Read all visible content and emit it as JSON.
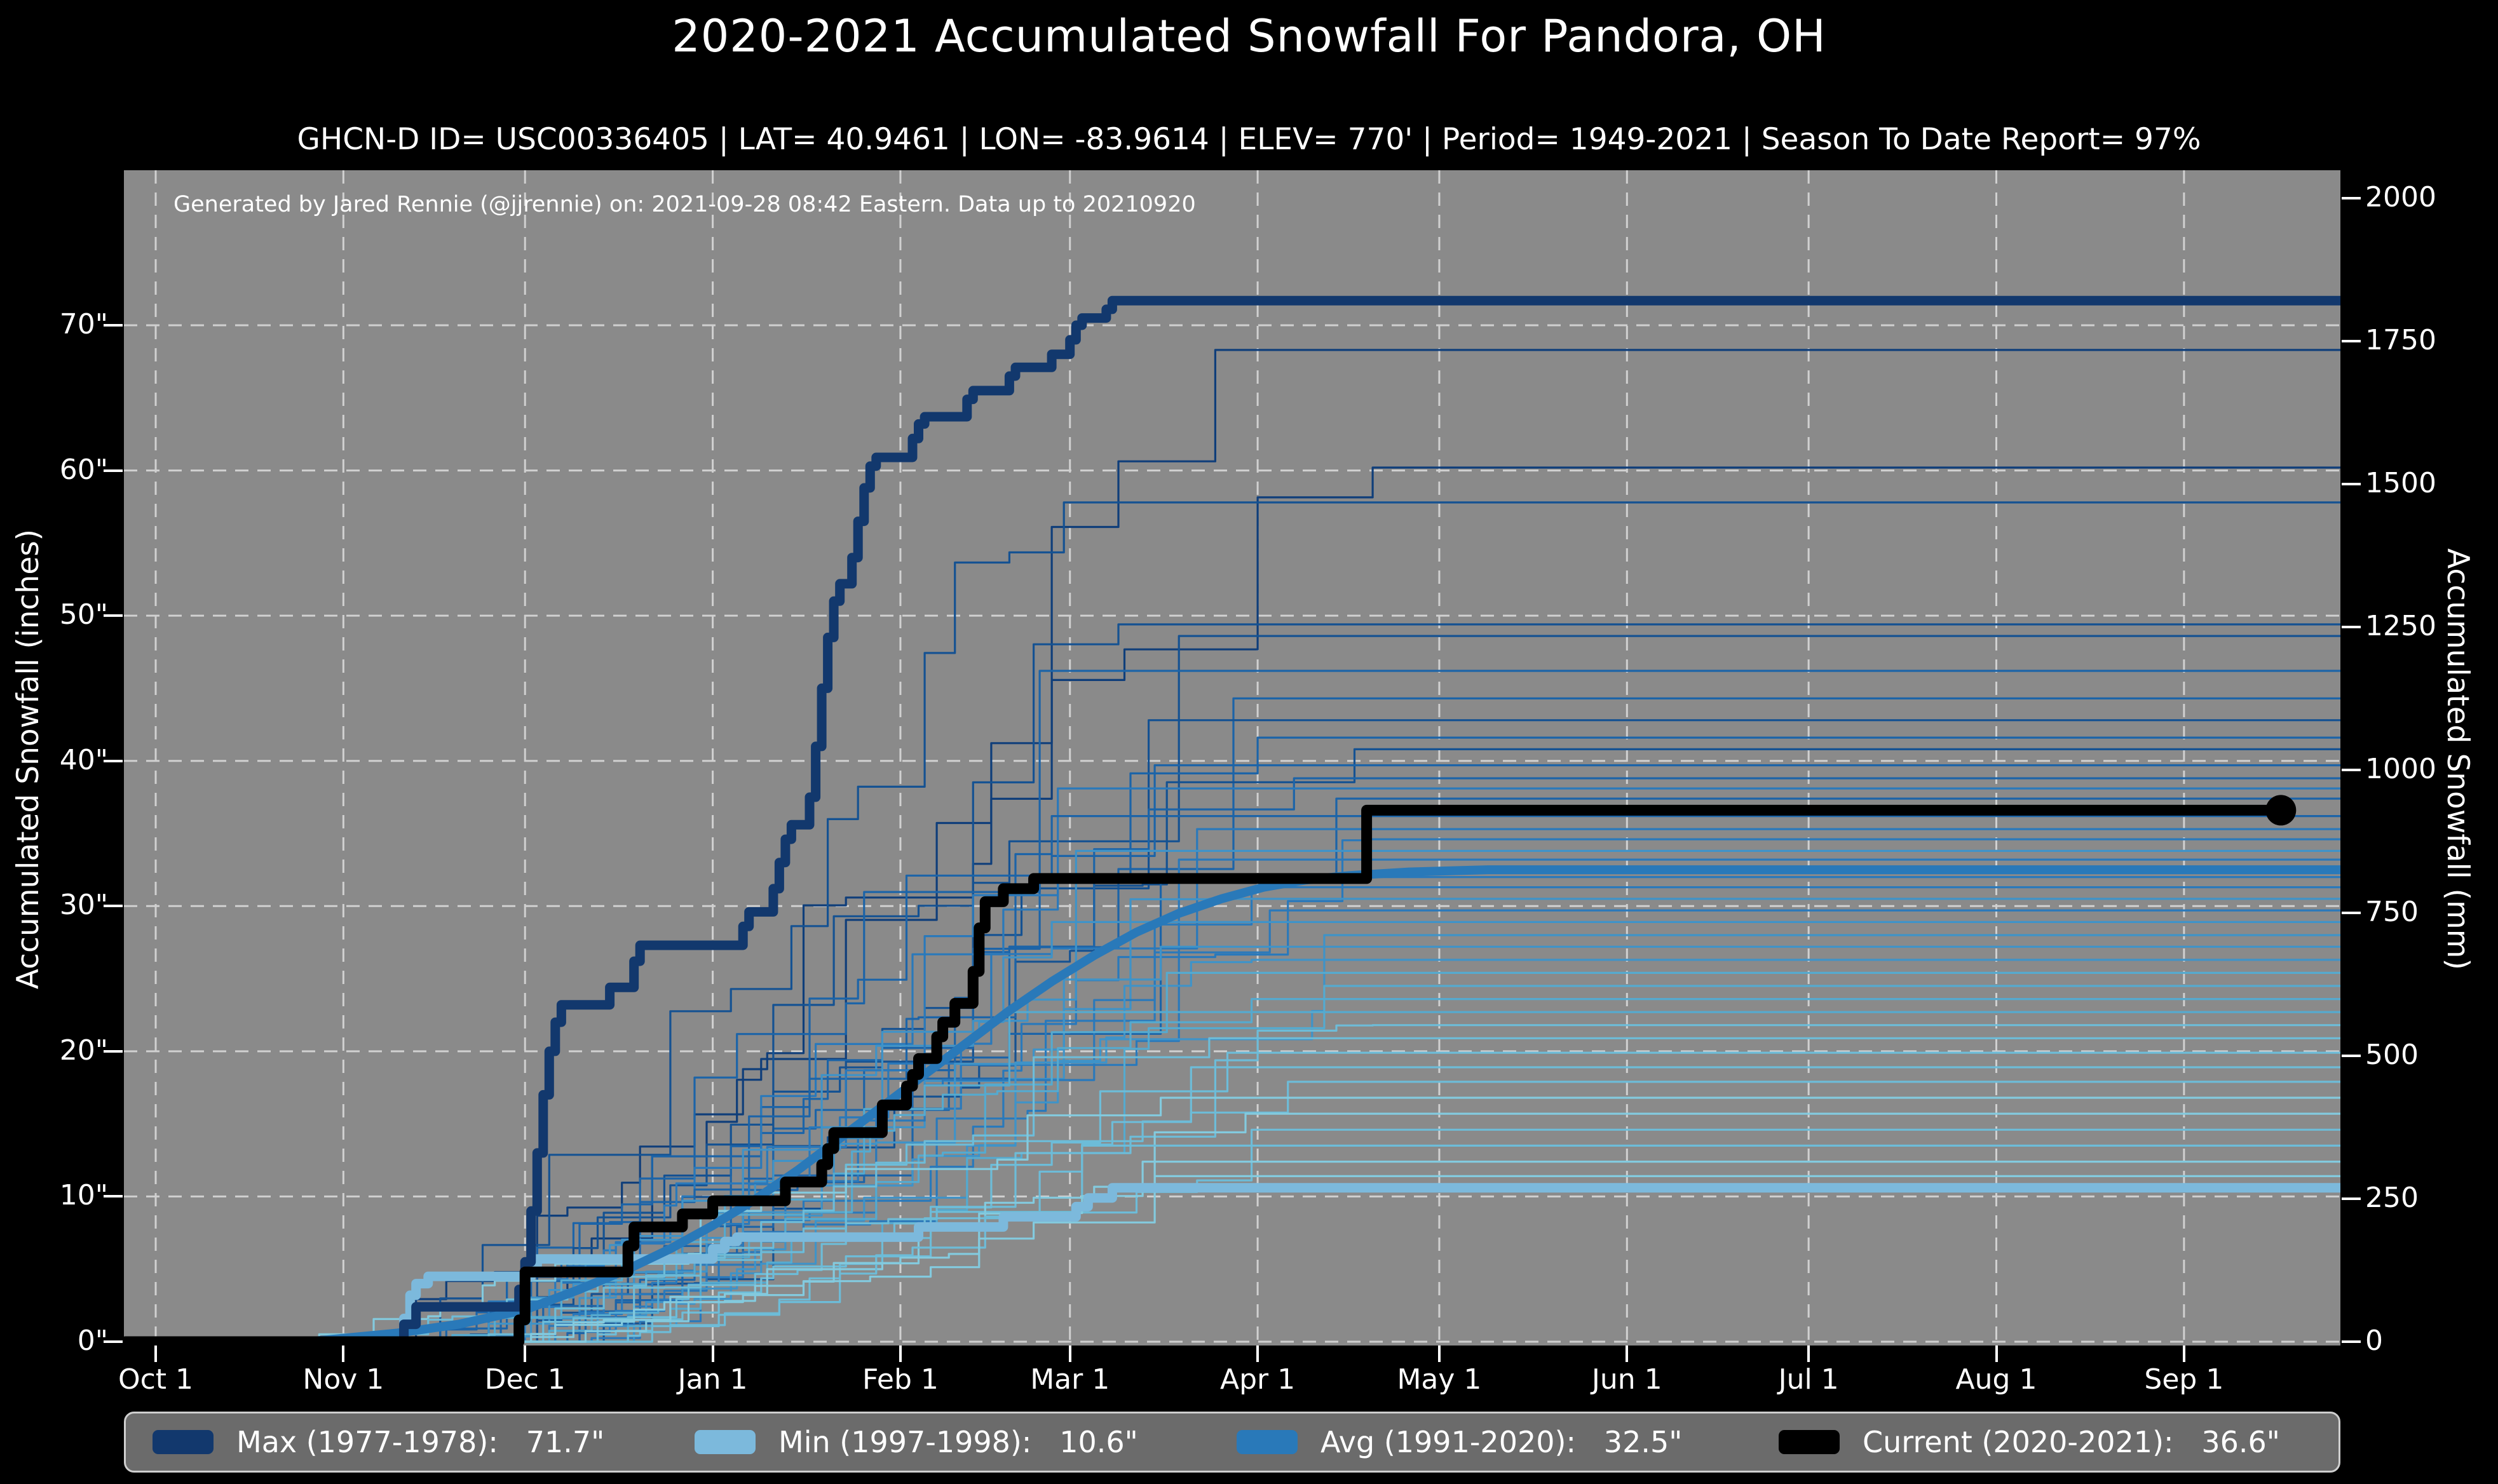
{
  "header": {
    "title": "2020-2021 Accumulated Snowfall For Pandora, OH",
    "subtitle": "GHCN-D ID= USC00336405 | LAT= 40.9461 | LON= -83.9614 | ELEV= 770' | Period= 1949-2021 | Season To Date Report= 97%"
  },
  "colors": {
    "page_bg": "#000000",
    "plot_bg": "#8a8a8a",
    "grid": "#e8e8e8",
    "text": "#ffffff",
    "max": "#12386d",
    "min": "#7cb9dc",
    "avg": "#2979b9",
    "current": "#000000",
    "thin_palette": [
      "#0f3e7a",
      "#155292",
      "#1c64a8",
      "#2a79bb",
      "#3f93c8",
      "#55aacf",
      "#6dbcd8",
      "#83cade"
    ]
  },
  "chart_data": {
    "type": "line",
    "title": "2020-2021 Accumulated Snowfall For Pandora, OH",
    "annotation": "Generated by Jared Rennie (@jjrennie) on: 2021-09-28 08:42 Eastern. Data up to 20210920",
    "xlabel": "",
    "ylabel_left": "Accumulated Snowfall (inches)",
    "ylabel_right": "Accumulated Snowfall (mm)",
    "grid": true,
    "legend_position": "bottom",
    "x_unit": "days since Oct 1",
    "x_ticks": [
      {
        "label": "Oct 1",
        "day": 0
      },
      {
        "label": "Nov 1",
        "day": 31
      },
      {
        "label": "Dec 1",
        "day": 61
      },
      {
        "label": "Jan 1",
        "day": 92
      },
      {
        "label": "Feb 1",
        "day": 123
      },
      {
        "label": "Mar 1",
        "day": 151
      },
      {
        "label": "Apr 1",
        "day": 182
      },
      {
        "label": "May 1",
        "day": 212
      },
      {
        "label": "Jun 1",
        "day": 243
      },
      {
        "label": "Jul 1",
        "day": 273
      },
      {
        "label": "Aug 1",
        "day": 304
      },
      {
        "label": "Sep 1",
        "day": 335
      }
    ],
    "y_left_ticks": [
      {
        "label": "0\"",
        "value": 0
      },
      {
        "label": "10\"",
        "value": 10
      },
      {
        "label": "20\"",
        "value": 20
      },
      {
        "label": "30\"",
        "value": 30
      },
      {
        "label": "40\"",
        "value": 40
      },
      {
        "label": "50\"",
        "value": 50
      },
      {
        "label": "60\"",
        "value": 60
      },
      {
        "label": "70\"",
        "value": 70
      }
    ],
    "y_right_ticks": [
      {
        "label": "0",
        "mm": 0
      },
      {
        "label": "250",
        "mm": 250
      },
      {
        "label": "500",
        "mm": 500
      },
      {
        "label": "750",
        "mm": 750
      },
      {
        "label": "1000",
        "mm": 1000
      },
      {
        "label": "1250",
        "mm": 1250
      },
      {
        "label": "1500",
        "mm": 1500
      },
      {
        "label": "1750",
        "mm": 1750
      },
      {
        "label": "2000",
        "mm": 2000
      }
    ],
    "ylim_inches": [
      0,
      80.7
    ],
    "mm_per_inch": 25.4,
    "series": [
      {
        "id": "max",
        "name": "Max (1977-1978)",
        "total_inches": 71.7,
        "style": "step",
        "width": 15,
        "points": [
          [
            -5,
            0
          ],
          [
            40,
            0
          ],
          [
            41,
            1.2
          ],
          [
            43,
            2.4
          ],
          [
            59,
            2.4
          ],
          [
            60,
            3.6
          ],
          [
            61,
            5.5
          ],
          [
            62,
            9
          ],
          [
            63,
            13
          ],
          [
            64,
            17
          ],
          [
            65,
            20
          ],
          [
            66,
            22
          ],
          [
            67,
            23.2
          ],
          [
            74,
            23.2
          ],
          [
            75,
            24.4
          ],
          [
            78,
            24.4
          ],
          [
            79,
            26.2
          ],
          [
            80,
            27.3
          ],
          [
            96,
            27.3
          ],
          [
            97,
            28.6
          ],
          [
            98,
            29.6
          ],
          [
            101,
            29.6
          ],
          [
            102,
            31.2
          ],
          [
            103,
            33
          ],
          [
            104,
            34.6
          ],
          [
            105,
            35.6
          ],
          [
            107,
            35.6
          ],
          [
            108,
            37.5
          ],
          [
            109,
            41
          ],
          [
            110,
            45
          ],
          [
            111,
            48.5
          ],
          [
            112,
            51
          ],
          [
            113,
            52.2
          ],
          [
            114,
            52.2
          ],
          [
            115,
            54
          ],
          [
            116,
            56.5
          ],
          [
            117,
            58.8
          ],
          [
            118,
            60.3
          ],
          [
            119,
            60.9
          ],
          [
            124,
            60.9
          ],
          [
            125,
            62.2
          ],
          [
            126,
            63.2
          ],
          [
            127,
            63.7
          ],
          [
            133,
            63.7
          ],
          [
            134,
            64.9
          ],
          [
            135,
            65.5
          ],
          [
            140,
            65.5
          ],
          [
            141,
            66.5
          ],
          [
            142,
            67.1
          ],
          [
            147,
            67.1
          ],
          [
            148,
            68
          ],
          [
            150,
            68
          ],
          [
            151,
            69
          ],
          [
            152,
            70
          ],
          [
            153,
            70.5
          ],
          [
            156,
            70.5
          ],
          [
            157,
            71.1
          ],
          [
            158,
            71.7
          ],
          [
            364,
            71.7
          ]
        ]
      },
      {
        "id": "min",
        "name": "Min (1997-1998)",
        "total_inches": 10.6,
        "style": "step",
        "width": 15,
        "points": [
          [
            -5,
            0
          ],
          [
            40,
            0
          ],
          [
            41,
            1.6
          ],
          [
            42,
            3.2
          ],
          [
            43,
            4
          ],
          [
            45,
            4.5
          ],
          [
            61,
            4.5
          ],
          [
            62,
            5.2
          ],
          [
            63,
            5.7
          ],
          [
            91,
            5.7
          ],
          [
            92,
            6.4
          ],
          [
            94,
            6.9
          ],
          [
            96,
            7.2
          ],
          [
            125,
            7.2
          ],
          [
            126,
            7.9
          ],
          [
            139,
            7.9
          ],
          [
            140,
            8.6
          ],
          [
            151,
            8.6
          ],
          [
            152,
            9.3
          ],
          [
            154,
            9.9
          ],
          [
            157,
            9.9
          ],
          [
            158,
            10.6
          ],
          [
            364,
            10.6
          ]
        ]
      },
      {
        "id": "avg",
        "name": "Avg (1991-2020)",
        "total_inches": 32.5,
        "style": "linear",
        "width": 14,
        "points": [
          [
            25,
            0
          ],
          [
            40,
            0.6
          ],
          [
            50,
            1.2
          ],
          [
            61,
            2.2
          ],
          [
            70,
            3.6
          ],
          [
            78,
            5
          ],
          [
            85,
            6.4
          ],
          [
            92,
            8
          ],
          [
            99,
            9.8
          ],
          [
            106,
            11.8
          ],
          [
            113,
            14
          ],
          [
            120,
            16.2
          ],
          [
            127,
            18.4
          ],
          [
            134,
            20.6
          ],
          [
            141,
            22.8
          ],
          [
            148,
            24.8
          ],
          [
            155,
            26.6
          ],
          [
            162,
            28.2
          ],
          [
            169,
            29.5
          ],
          [
            176,
            30.5
          ],
          [
            183,
            31.3
          ],
          [
            190,
            31.8
          ],
          [
            197,
            32.1
          ],
          [
            207,
            32.35
          ],
          [
            220,
            32.5
          ],
          [
            364,
            32.5
          ]
        ]
      },
      {
        "id": "current",
        "name": "Current (2020-2021)",
        "total_inches": 36.6,
        "style": "step",
        "width": 17,
        "endpoint_marker": {
          "day": 351,
          "value": 36.6,
          "radius": 24
        },
        "points": [
          [
            -5,
            0
          ],
          [
            59,
            0
          ],
          [
            60,
            1.5
          ],
          [
            61,
            4.8
          ],
          [
            77,
            4.8
          ],
          [
            78,
            6.6
          ],
          [
            79,
            7.9
          ],
          [
            86,
            7.9
          ],
          [
            87,
            8.8
          ],
          [
            91,
            8.8
          ],
          [
            92,
            9.7
          ],
          [
            103,
            9.7
          ],
          [
            104,
            11
          ],
          [
            109,
            11
          ],
          [
            110,
            12.2
          ],
          [
            111,
            13.3
          ],
          [
            112,
            14.4
          ],
          [
            119,
            14.4
          ],
          [
            120,
            16.3
          ],
          [
            123,
            16.3
          ],
          [
            124,
            17.6
          ],
          [
            125,
            18.4
          ],
          [
            126,
            19.5
          ],
          [
            128,
            19.5
          ],
          [
            129,
            21
          ],
          [
            130,
            22
          ],
          [
            131,
            22
          ],
          [
            132,
            23.3
          ],
          [
            134,
            23.3
          ],
          [
            135,
            25.5
          ],
          [
            136,
            28.5
          ],
          [
            137,
            30.3
          ],
          [
            139,
            30.3
          ],
          [
            140,
            31.2
          ],
          [
            144,
            31.2
          ],
          [
            145,
            31.9
          ],
          [
            199,
            31.9
          ],
          [
            200,
            36.6
          ],
          [
            351,
            36.6
          ]
        ]
      }
    ],
    "historical_thin_seasons": {
      "description": "Unlabeled historical seasons 1949-2021 drawn as thin step lines; [final_inches, onset_day, done_day, seed]",
      "line_width": 3.2,
      "items": [
        [
          68.3,
          55,
          190,
          1
        ],
        [
          60.2,
          33,
          203,
          2
        ],
        [
          57.8,
          36,
          160,
          3
        ],
        [
          49.4,
          50,
          172,
          4
        ],
        [
          48.6,
          58,
          185,
          5
        ],
        [
          46.2,
          44,
          168,
          6
        ],
        [
          44.3,
          62,
          192,
          7
        ],
        [
          42.8,
          47,
          175,
          8
        ],
        [
          41.6,
          55,
          182,
          9
        ],
        [
          40.8,
          68,
          198,
          10
        ],
        [
          39.7,
          42,
          165,
          11
        ],
        [
          38.8,
          60,
          188,
          12
        ],
        [
          38.1,
          52,
          170,
          13
        ],
        [
          37.4,
          64,
          195,
          14
        ],
        [
          36.2,
          46,
          162,
          15
        ],
        [
          35.3,
          58,
          180,
          16
        ],
        [
          34.6,
          70,
          200,
          17
        ],
        [
          33.8,
          49,
          173,
          18
        ],
        [
          33.2,
          61,
          190,
          19
        ],
        [
          32,
          44,
          158,
          20
        ],
        [
          31.3,
          66,
          196,
          21
        ],
        [
          30.5,
          53,
          176,
          22
        ],
        [
          29.7,
          59,
          184,
          23
        ],
        [
          28.9,
          47,
          166,
          24
        ],
        [
          28,
          72,
          205,
          25
        ],
        [
          27.2,
          56,
          178,
          26
        ],
        [
          26.3,
          63,
          191,
          27
        ],
        [
          25.4,
          50,
          169,
          28
        ],
        [
          24.5,
          68,
          199,
          29
        ],
        [
          23.6,
          58,
          181,
          30
        ],
        [
          22.7,
          45,
          163,
          31
        ],
        [
          21.8,
          74,
          207,
          32
        ],
        [
          20.9,
          54,
          174,
          33
        ],
        [
          19.9,
          62,
          189,
          34
        ],
        [
          18.9,
          49,
          171,
          35
        ],
        [
          17.9,
          67,
          194,
          36
        ],
        [
          16.8,
          20,
          170,
          37
        ],
        [
          15.7,
          57,
          183,
          38
        ],
        [
          14.6,
          71,
          201,
          39
        ],
        [
          13.5,
          26,
          178,
          40
        ],
        [
          12.4,
          60,
          186,
          41
        ],
        [
          11.4,
          52,
          176,
          42
        ]
      ]
    }
  },
  "legend": {
    "items": [
      {
        "label": "Max (1977-1978):",
        "value": "71.7\"",
        "series": "max"
      },
      {
        "label": "Min (1997-1998):",
        "value": "10.6\"",
        "series": "min"
      },
      {
        "label": "Avg (1991-2020):",
        "value": "32.5\"",
        "series": "avg"
      },
      {
        "label": "Current (2020-2021):",
        "value": "36.6\"",
        "series": "current"
      }
    ]
  }
}
